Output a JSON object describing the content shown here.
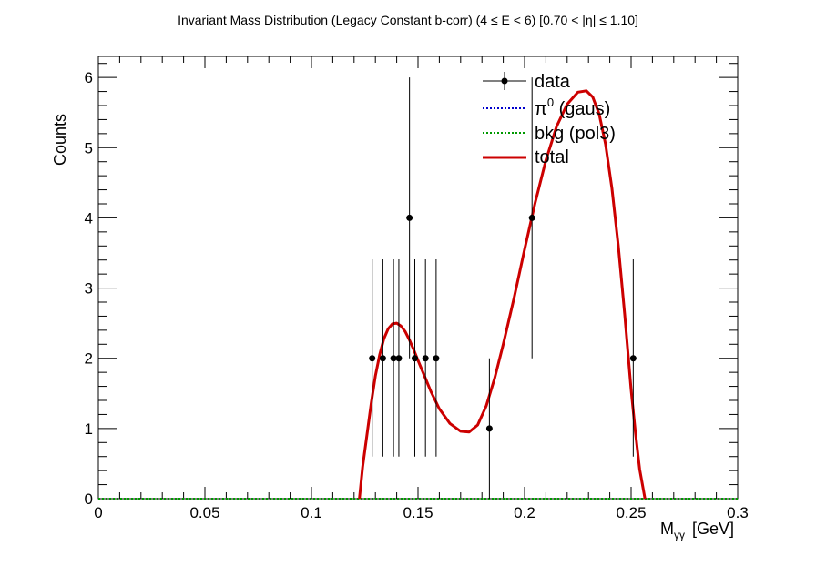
{
  "chart_data": {
    "type": "scatter",
    "title": "Invariant Mass Distribution (Legacy Constant b-corr)   (4 ≤ E < 6)   [0.70 < |η| ≤ 1.10]",
    "xlabel": "M",
    "xlabel_sub": "γγ",
    "xlabel_unit": "[GeV]",
    "ylabel": "Counts",
    "xlim": [
      0,
      0.3
    ],
    "ylim": [
      0,
      6.3
    ],
    "grid": false,
    "legend_position": "top-right",
    "x_ticks": [
      0,
      0.05,
      0.1,
      0.15,
      0.2,
      0.25,
      0.3
    ],
    "x_tick_labels": [
      "0",
      "0.05",
      "0.1",
      "0.15",
      "0.2",
      "0.25",
      "0.3"
    ],
    "y_ticks": [
      0,
      1,
      2,
      3,
      4,
      5,
      6
    ],
    "y_tick_labels": [
      "0",
      "1",
      "2",
      "3",
      "4",
      "5",
      "6"
    ],
    "series": [
      {
        "name": "data",
        "kind": "points-with-errors",
        "color": "#000000",
        "points": [
          {
            "x": 0.1285,
            "y": 2,
            "lo": 0.6,
            "hi": 3.41
          },
          {
            "x": 0.1335,
            "y": 2,
            "lo": 0.6,
            "hi": 3.41
          },
          {
            "x": 0.1385,
            "y": 2,
            "lo": 0.6,
            "hi": 3.41
          },
          {
            "x": 0.141,
            "y": 2,
            "lo": 0.6,
            "hi": 3.41
          },
          {
            "x": 0.146,
            "y": 4,
            "lo": 2.0,
            "hi": 6.0
          },
          {
            "x": 0.1485,
            "y": 2,
            "lo": 0.6,
            "hi": 3.41
          },
          {
            "x": 0.1535,
            "y": 2,
            "lo": 0.6,
            "hi": 3.41
          },
          {
            "x": 0.1585,
            "y": 2,
            "lo": 0.6,
            "hi": 3.41
          },
          {
            "x": 0.1835,
            "y": 1,
            "lo": 0.0,
            "hi": 2.0
          },
          {
            "x": 0.2035,
            "y": 4,
            "lo": 2.0,
            "hi": 6.0
          },
          {
            "x": 0.251,
            "y": 2,
            "lo": 0.6,
            "hi": 3.41
          }
        ]
      },
      {
        "name": "π⁰ (gaus)",
        "legend_main": "π",
        "legend_sup": "0",
        "legend_rest": " (gaus)",
        "kind": "line",
        "style": "dotted",
        "color": "#0000cc",
        "x": [
          0,
          0.3
        ],
        "y": [
          0,
          0
        ]
      },
      {
        "name": "bkg (pol3)",
        "kind": "line",
        "style": "dotted",
        "color": "#009900",
        "x": [
          0,
          0.3
        ],
        "y": [
          0,
          0
        ]
      },
      {
        "name": "total",
        "kind": "line",
        "style": "solid",
        "color": "#cc0000",
        "x": [
          0.1225,
          0.124,
          0.126,
          0.128,
          0.13,
          0.132,
          0.134,
          0.136,
          0.138,
          0.14,
          0.142,
          0.144,
          0.146,
          0.148,
          0.15,
          0.153,
          0.156,
          0.16,
          0.165,
          0.17,
          0.174,
          0.178,
          0.182,
          0.186,
          0.19,
          0.195,
          0.2,
          0.205,
          0.21,
          0.215,
          0.22,
          0.225,
          0.229,
          0.232,
          0.235,
          0.238,
          0.241,
          0.244,
          0.247,
          0.25,
          0.252,
          0.254,
          0.2565
        ],
        "y": [
          0.0,
          0.45,
          0.9,
          1.35,
          1.75,
          2.05,
          2.28,
          2.42,
          2.49,
          2.5,
          2.46,
          2.38,
          2.26,
          2.12,
          1.97,
          1.75,
          1.53,
          1.28,
          1.07,
          0.96,
          0.95,
          1.05,
          1.32,
          1.72,
          2.2,
          2.85,
          3.55,
          4.22,
          4.82,
          5.3,
          5.62,
          5.79,
          5.81,
          5.72,
          5.48,
          5.05,
          4.42,
          3.6,
          2.62,
          1.55,
          0.95,
          0.42,
          0.0
        ]
      }
    ]
  }
}
